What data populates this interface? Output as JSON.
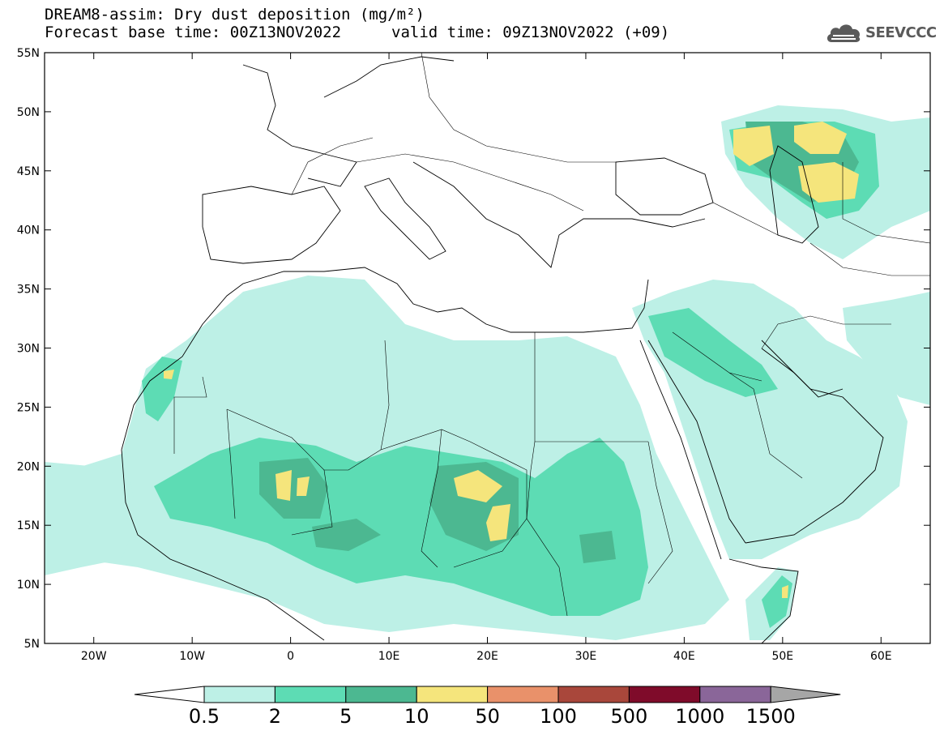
{
  "header": {
    "title": "DREAM8-assim: Dry dust deposition (mg/m²)",
    "base_time": "Forecast base time: 00Z13NOV2022",
    "valid_time": "valid time: 09Z13NOV2022 (+09)"
  },
  "logo": {
    "text": "SEEVCCC",
    "icon": "cloud-icon"
  },
  "map": {
    "lon_range": [
      -25,
      65
    ],
    "lat_range": [
      5,
      55
    ],
    "lat_ticks": [
      {
        "value": 55,
        "label": "55N"
      },
      {
        "value": 50,
        "label": "50N"
      },
      {
        "value": 45,
        "label": "45N"
      },
      {
        "value": 40,
        "label": "40N"
      },
      {
        "value": 35,
        "label": "35N"
      },
      {
        "value": 30,
        "label": "30N"
      },
      {
        "value": 25,
        "label": "25N"
      },
      {
        "value": 20,
        "label": "20N"
      },
      {
        "value": 15,
        "label": "15N"
      },
      {
        "value": 10,
        "label": "10N"
      },
      {
        "value": 5,
        "label": "5N"
      }
    ],
    "lon_ticks": [
      {
        "value": -20,
        "label": "20W"
      },
      {
        "value": -10,
        "label": "10W"
      },
      {
        "value": 0,
        "label": "0"
      },
      {
        "value": 10,
        "label": "10E"
      },
      {
        "value": 20,
        "label": "20E"
      },
      {
        "value": 30,
        "label": "30E"
      },
      {
        "value": 40,
        "label": "40E"
      },
      {
        "value": 50,
        "label": "50E"
      },
      {
        "value": 60,
        "label": "60E"
      }
    ]
  },
  "colorbar": {
    "labels": [
      "0.5",
      "2",
      "5",
      "10",
      "50",
      "100",
      "500",
      "1000",
      "1500"
    ],
    "colors": [
      "#bdf0e6",
      "#5ddcb4",
      "#4cb891",
      "#f5e57c",
      "#e9916a",
      "#a9473b",
      "#7f0b2a",
      "#8a6699"
    ],
    "low_extend_color": "#ffffff",
    "high_extend_color": "#a6a6a6"
  }
}
